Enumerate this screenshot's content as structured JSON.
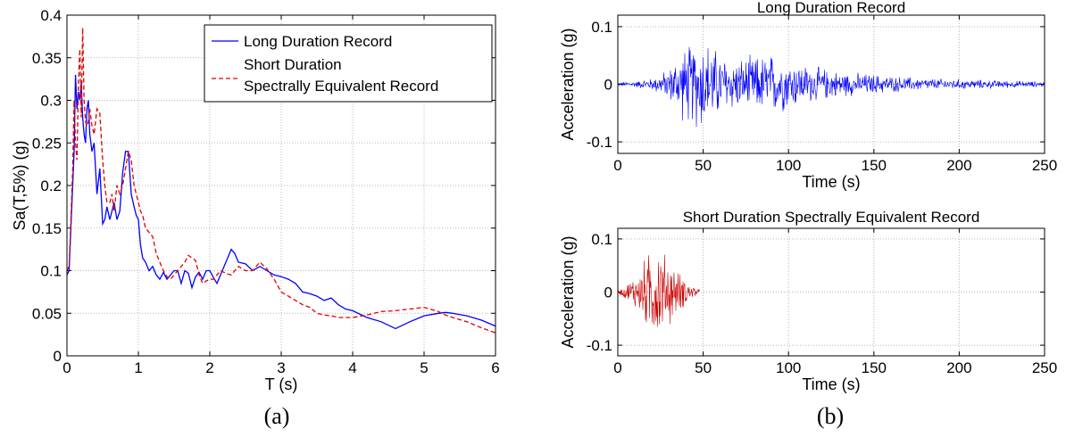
{
  "chart_data": [
    {
      "id": "a",
      "type": "line",
      "panel_label": "(a)",
      "title": "",
      "xlabel": "T (s)",
      "ylabel": "Sa(T,5%) (g)",
      "xlim": [
        0,
        6
      ],
      "ylim": [
        0,
        0.4
      ],
      "xticks": [
        "0",
        "1",
        "2",
        "3",
        "4",
        "5",
        "6"
      ],
      "yticks": [
        "0",
        "0.05",
        "0.1",
        "0.15",
        "0.2",
        "0.25",
        "0.3",
        "0.35",
        "0.4"
      ],
      "grid": true,
      "legend_position": "top-right",
      "series": [
        {
          "name": "Long Duration Record",
          "color": "#0000ff",
          "style": "solid",
          "x": [
            0.0,
            0.03,
            0.06,
            0.08,
            0.1,
            0.12,
            0.14,
            0.16,
            0.18,
            0.2,
            0.22,
            0.24,
            0.26,
            0.28,
            0.3,
            0.32,
            0.35,
            0.38,
            0.42,
            0.46,
            0.5,
            0.53,
            0.56,
            0.6,
            0.63,
            0.66,
            0.7,
            0.74,
            0.78,
            0.82,
            0.86,
            0.9,
            0.94,
            0.97,
            1.0,
            1.03,
            1.06,
            1.1,
            1.15,
            1.2,
            1.25,
            1.3,
            1.35,
            1.4,
            1.45,
            1.5,
            1.55,
            1.6,
            1.65,
            1.7,
            1.75,
            1.8,
            1.85,
            1.9,
            1.95,
            2.0,
            2.05,
            2.1,
            2.15,
            2.2,
            2.25,
            2.3,
            2.35,
            2.4,
            2.5,
            2.6,
            2.7,
            2.8,
            2.9,
            3.0,
            3.1,
            3.2,
            3.3,
            3.4,
            3.5,
            3.6,
            3.7,
            3.8,
            3.9,
            4.0,
            4.2,
            4.4,
            4.6,
            4.8,
            5.0,
            5.2,
            5.3,
            5.4,
            5.6,
            5.8,
            6.0
          ],
          "y": [
            0.095,
            0.1,
            0.16,
            0.2,
            0.24,
            0.33,
            0.29,
            0.31,
            0.3,
            0.32,
            0.28,
            0.26,
            0.25,
            0.29,
            0.3,
            0.26,
            0.24,
            0.25,
            0.19,
            0.22,
            0.155,
            0.16,
            0.175,
            0.16,
            0.17,
            0.18,
            0.16,
            0.17,
            0.215,
            0.24,
            0.24,
            0.19,
            0.175,
            0.165,
            0.16,
            0.13,
            0.115,
            0.11,
            0.1,
            0.105,
            0.095,
            0.09,
            0.098,
            0.09,
            0.095,
            0.1,
            0.1,
            0.085,
            0.1,
            0.097,
            0.08,
            0.093,
            0.098,
            0.09,
            0.1,
            0.1,
            0.092,
            0.085,
            0.095,
            0.105,
            0.115,
            0.125,
            0.12,
            0.11,
            0.108,
            0.1,
            0.105,
            0.1,
            0.095,
            0.093,
            0.09,
            0.085,
            0.075,
            0.073,
            0.07,
            0.065,
            0.068,
            0.06,
            0.055,
            0.053,
            0.045,
            0.04,
            0.032,
            0.04,
            0.047,
            0.05,
            0.051,
            0.05,
            0.047,
            0.042,
            0.035
          ]
        },
        {
          "name": "Short Duration Spectrally Equivalent Record",
          "color": "#e00000",
          "style": "dashed",
          "x": [
            0.0,
            0.03,
            0.06,
            0.08,
            0.1,
            0.12,
            0.14,
            0.16,
            0.18,
            0.2,
            0.22,
            0.24,
            0.26,
            0.28,
            0.3,
            0.32,
            0.35,
            0.38,
            0.42,
            0.46,
            0.5,
            0.53,
            0.56,
            0.6,
            0.63,
            0.66,
            0.7,
            0.74,
            0.78,
            0.82,
            0.86,
            0.9,
            0.94,
            0.97,
            1.0,
            1.03,
            1.06,
            1.1,
            1.15,
            1.2,
            1.25,
            1.3,
            1.35,
            1.4,
            1.45,
            1.5,
            1.55,
            1.6,
            1.65,
            1.7,
            1.75,
            1.8,
            1.85,
            1.9,
            1.95,
            2.0,
            2.05,
            2.1,
            2.15,
            2.2,
            2.25,
            2.3,
            2.35,
            2.4,
            2.5,
            2.6,
            2.7,
            2.8,
            2.9,
            3.0,
            3.1,
            3.2,
            3.3,
            3.4,
            3.5,
            3.6,
            3.7,
            3.8,
            3.9,
            4.0,
            4.2,
            4.4,
            4.6,
            4.8,
            5.0,
            5.2,
            5.3,
            5.4,
            5.6,
            5.8,
            6.0
          ],
          "y": [
            0.1,
            0.105,
            0.17,
            0.22,
            0.3,
            0.25,
            0.23,
            0.32,
            0.36,
            0.28,
            0.385,
            0.3,
            0.275,
            0.27,
            0.275,
            0.29,
            0.27,
            0.26,
            0.29,
            0.285,
            0.23,
            0.2,
            0.18,
            0.18,
            0.19,
            0.17,
            0.2,
            0.19,
            0.2,
            0.22,
            0.24,
            0.23,
            0.2,
            0.19,
            0.18,
            0.17,
            0.165,
            0.15,
            0.145,
            0.14,
            0.12,
            0.11,
            0.1,
            0.093,
            0.09,
            0.095,
            0.1,
            0.105,
            0.11,
            0.118,
            0.115,
            0.112,
            0.095,
            0.085,
            0.088,
            0.09,
            0.09,
            0.095,
            0.1,
            0.098,
            0.096,
            0.095,
            0.1,
            0.105,
            0.1,
            0.1,
            0.11,
            0.102,
            0.09,
            0.075,
            0.07,
            0.065,
            0.06,
            0.057,
            0.05,
            0.048,
            0.047,
            0.045,
            0.045,
            0.045,
            0.048,
            0.052,
            0.053,
            0.055,
            0.057,
            0.052,
            0.048,
            0.045,
            0.04,
            0.033,
            0.027
          ]
        }
      ]
    },
    {
      "id": "b1",
      "type": "line",
      "title": "Long Duration Record",
      "xlabel": "Time (s)",
      "ylabel": "Acceleration (g)",
      "xlim": [
        0,
        250
      ],
      "ylim": [
        -0.12,
        0.12
      ],
      "xticks": [
        "0",
        "50",
        "100",
        "150",
        "200",
        "250"
      ],
      "yticks": [
        "-0.1",
        "0",
        "0.1"
      ],
      "grid": true,
      "series": [
        {
          "color": "#0000ff",
          "envelope": {
            "t": [
              0,
              10,
              20,
              30,
              38,
              45,
              50,
              55,
              60,
              70,
              80,
              90,
              100,
              110,
              120,
              130,
              140,
              150,
              160,
              180,
              200,
              220,
              240,
              250
            ],
            "amp": [
              0.004,
              0.006,
              0.012,
              0.03,
              0.07,
              0.085,
              0.095,
              0.08,
              0.06,
              0.05,
              0.055,
              0.06,
              0.05,
              0.038,
              0.032,
              0.025,
              0.022,
              0.02,
              0.016,
              0.012,
              0.01,
              0.008,
              0.006,
              0.005
            ]
          }
        }
      ]
    },
    {
      "id": "b2",
      "type": "line",
      "panel_label": "(b)",
      "title": "Short Duration Spectrally Equivalent Record",
      "xlabel": "Time (s)",
      "ylabel": "Acceleration (g)",
      "xlim": [
        0,
        250
      ],
      "ylim": [
        -0.12,
        0.12
      ],
      "xticks": [
        "0",
        "50",
        "100",
        "150",
        "200",
        "250"
      ],
      "yticks": [
        "-0.1",
        "0",
        "0.1"
      ],
      "grid": true,
      "series": [
        {
          "color": "#cc0000",
          "envelope": {
            "t": [
              0,
              3,
              6,
              10,
              14,
              18,
              22,
              26,
              30,
              34,
              38,
              42,
              46,
              48
            ],
            "amp": [
              0.005,
              0.01,
              0.02,
              0.035,
              0.06,
              0.085,
              0.105,
              0.09,
              0.075,
              0.05,
              0.035,
              0.02,
              0.01,
              0.005
            ]
          }
        }
      ]
    }
  ]
}
